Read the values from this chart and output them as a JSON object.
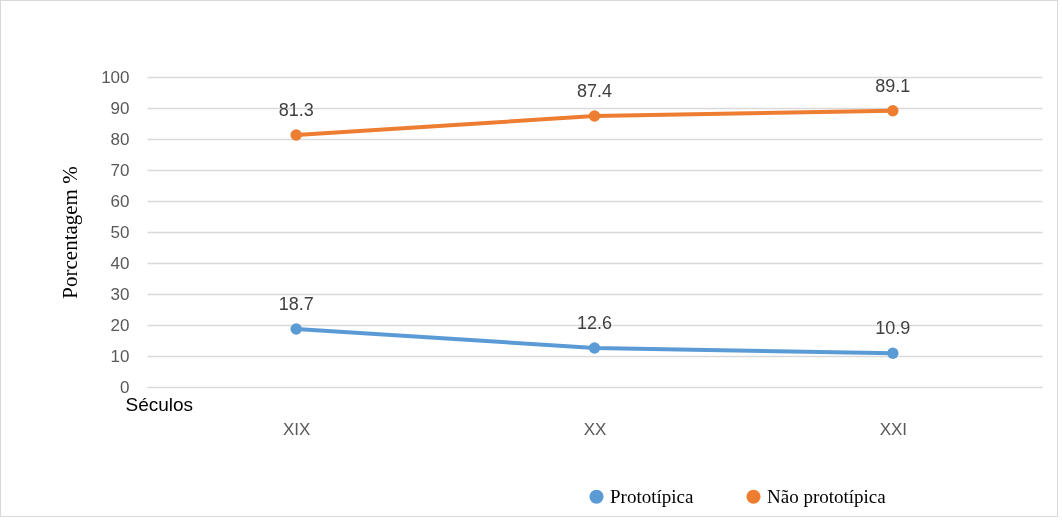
{
  "chart_data": {
    "type": "line",
    "xlabel": "Séculos",
    "ylabel": "Porcentagem %",
    "categories": [
      "XIX",
      "XX",
      "XXI"
    ],
    "series": [
      {
        "name": "Prototípica",
        "color": "#5b9bd5",
        "values": [
          18.7,
          12.6,
          10.9
        ]
      },
      {
        "name": "Não prototípica",
        "color": "#ed7d31",
        "values": [
          81.3,
          87.4,
          89.1
        ]
      }
    ],
    "ylim": [
      0,
      100
    ],
    "yticks": [
      0,
      10,
      20,
      30,
      40,
      50,
      60,
      70,
      80,
      90,
      100
    ],
    "grid": "y",
    "legend": "bottom right",
    "marker": "circle",
    "line_style": "solid",
    "data_labels": true
  }
}
